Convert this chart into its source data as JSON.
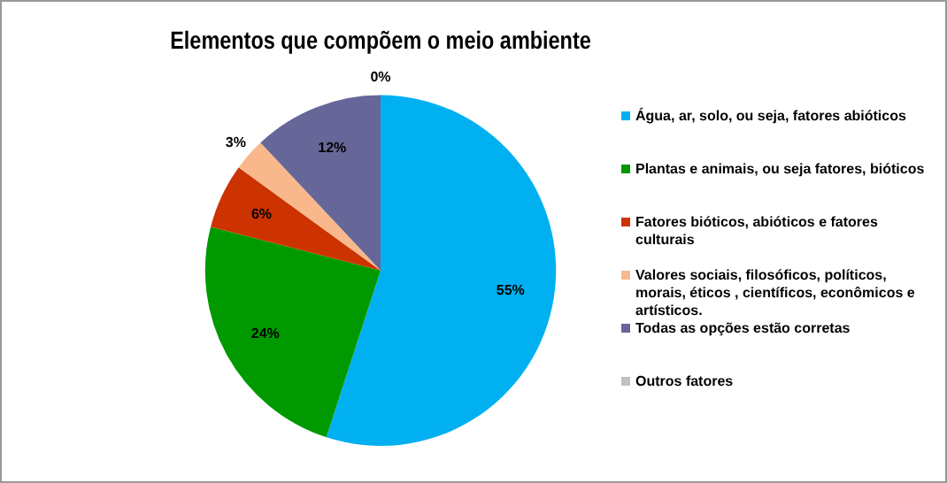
{
  "chart_data": {
    "type": "pie",
    "title": "Elementos que compõem o meio ambiente",
    "categories": [
      "Água, ar, solo, ou seja, fatores abióticos",
      "Plantas e animais, ou seja fatores, bióticos",
      "Fatores bióticos, abióticos e fatores culturais",
      "Valores sociais, filosóficos, políticos, morais, éticos , científicos,  econômicos e artísticos.",
      "Todas as opções estão corretas",
      "Outros fatores"
    ],
    "values": [
      55,
      24,
      6,
      3,
      12,
      0
    ],
    "colors": [
      "#00b0f0",
      "#009900",
      "#cc3300",
      "#f8b88b",
      "#666699",
      "#c0c0c0"
    ],
    "value_labels": [
      "55%",
      "24%",
      "6%",
      "3%",
      "12%",
      "0%"
    ],
    "legend": "right"
  }
}
